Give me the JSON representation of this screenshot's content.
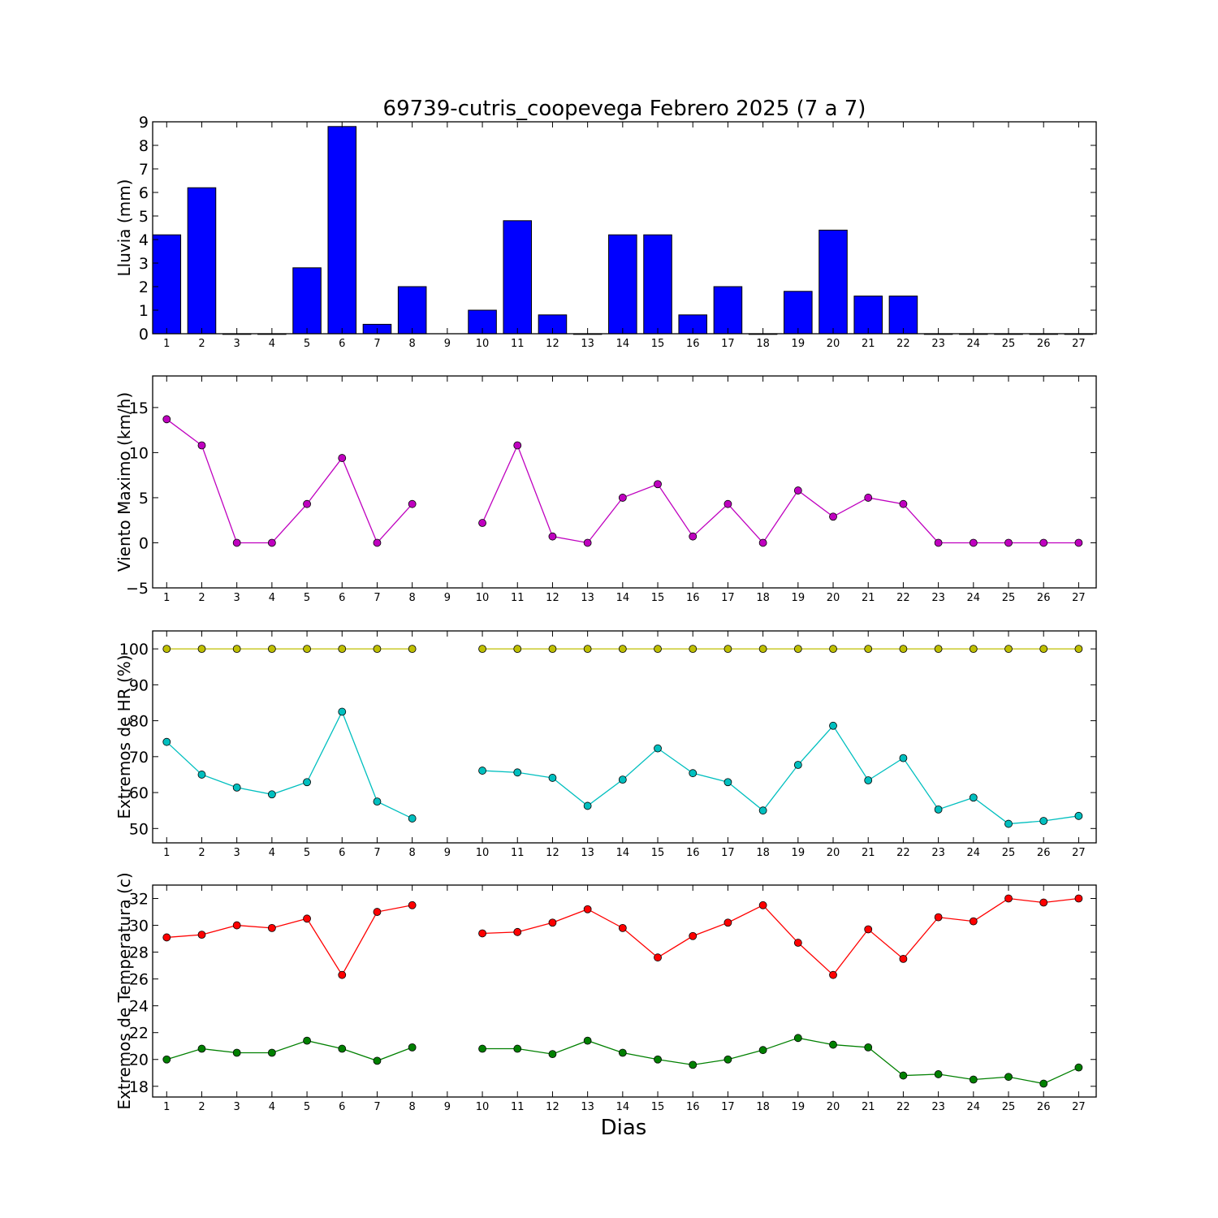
{
  "chart_data": [
    {
      "id": "lluvia",
      "type": "bar",
      "title": "69739-cutris_coopevega Febrero 2025  (7 a 7)",
      "ylabel": "Lluvia (mm)",
      "xlabel": "",
      "ylim": [
        0,
        9
      ],
      "yticks": [
        0,
        1,
        2,
        3,
        4,
        5,
        6,
        7,
        8,
        9
      ],
      "yticklabels": [
        "0",
        "1",
        "2",
        "3",
        "4",
        "5",
        "6",
        "7",
        "8",
        "9"
      ],
      "xlim": [
        0.6,
        27.5
      ],
      "categories": [
        1,
        2,
        3,
        4,
        5,
        6,
        7,
        8,
        9,
        10,
        11,
        12,
        13,
        14,
        15,
        16,
        17,
        18,
        19,
        20,
        21,
        22,
        23,
        24,
        25,
        26,
        27
      ],
      "series": [
        {
          "color": "#0000ff",
          "values": [
            4.2,
            6.2,
            0,
            0,
            2.8,
            8.8,
            0.4,
            2.0,
            null,
            1.0,
            4.8,
            0.8,
            0,
            4.2,
            4.2,
            0.8,
            2.0,
            0,
            1.8,
            4.4,
            1.6,
            1.6,
            0,
            0,
            0,
            0,
            0
          ]
        }
      ],
      "grid": false
    },
    {
      "id": "viento",
      "type": "line",
      "title": "",
      "ylabel": "Viento Maximo (km/h)",
      "xlabel": "",
      "ylim": [
        -5,
        18.5
      ],
      "yticks": [
        -5,
        0,
        5,
        10,
        15
      ],
      "yticklabels": [
        "−5",
        "0",
        "5",
        "10",
        "15"
      ],
      "xlim": [
        0.6,
        27.5
      ],
      "x": [
        1,
        2,
        3,
        4,
        5,
        6,
        7,
        8,
        9,
        10,
        11,
        12,
        13,
        14,
        15,
        16,
        17,
        18,
        19,
        20,
        21,
        22,
        23,
        24,
        25,
        26,
        27
      ],
      "series": [
        {
          "color": "#bf00bf",
          "values": [
            13.7,
            10.8,
            0,
            0,
            4.3,
            9.4,
            0,
            4.3,
            null,
            2.2,
            10.8,
            0.7,
            0,
            5.0,
            6.5,
            0.7,
            4.3,
            0,
            5.8,
            2.9,
            5.0,
            4.3,
            0,
            0,
            0,
            0,
            0
          ]
        }
      ],
      "grid": false
    },
    {
      "id": "hr",
      "type": "line",
      "title": "",
      "ylabel": "Extremos de HR (%)",
      "xlabel": "",
      "ylim": [
        46,
        105
      ],
      "yticks": [
        50,
        60,
        70,
        80,
        90,
        100
      ],
      "yticklabels": [
        "50",
        "60",
        "70",
        "80",
        "90",
        "100"
      ],
      "xlim": [
        0.6,
        27.5
      ],
      "x": [
        1,
        2,
        3,
        4,
        5,
        6,
        7,
        8,
        9,
        10,
        11,
        12,
        13,
        14,
        15,
        16,
        17,
        18,
        19,
        20,
        21,
        22,
        23,
        24,
        25,
        26,
        27
      ],
      "series": [
        {
          "color": "#bfbf00",
          "values": [
            100,
            100,
            100,
            100,
            100,
            100,
            100,
            100,
            null,
            100,
            100,
            100,
            100,
            100,
            100,
            100,
            100,
            100,
            100,
            100,
            100,
            100,
            100,
            100,
            100,
            100,
            100
          ]
        },
        {
          "color": "#00bfbf",
          "values": [
            74.1,
            65.0,
            61.4,
            59.5,
            62.9,
            82.5,
            57.5,
            52.8,
            null,
            66.1,
            65.6,
            64.1,
            56.3,
            63.6,
            72.3,
            65.4,
            62.9,
            55.0,
            67.7,
            78.6,
            63.4,
            69.6,
            55.3,
            58.6,
            51.3,
            52.1,
            53.5
          ]
        }
      ],
      "grid": false
    },
    {
      "id": "temperatura",
      "type": "line",
      "title": "",
      "ylabel": "Extremos de Temperatura (c)",
      "xlabel": "Dias",
      "ylim": [
        17.2,
        33.0
      ],
      "yticks": [
        18,
        20,
        22,
        24,
        26,
        28,
        30,
        32
      ],
      "yticklabels": [
        "18",
        "20",
        "22",
        "24",
        "26",
        "28",
        "30",
        "32"
      ],
      "xlim": [
        0.6,
        27.5
      ],
      "x": [
        1,
        2,
        3,
        4,
        5,
        6,
        7,
        8,
        9,
        10,
        11,
        12,
        13,
        14,
        15,
        16,
        17,
        18,
        19,
        20,
        21,
        22,
        23,
        24,
        25,
        26,
        27
      ],
      "series": [
        {
          "color": "#ff0000",
          "values": [
            29.1,
            29.3,
            30.0,
            29.8,
            30.5,
            26.3,
            31.0,
            31.5,
            null,
            29.4,
            29.5,
            30.2,
            31.2,
            29.8,
            27.6,
            29.2,
            30.2,
            31.5,
            28.7,
            26.3,
            29.7,
            27.5,
            30.6,
            30.3,
            32.0,
            31.7,
            32.0
          ]
        },
        {
          "color": "#008000",
          "values": [
            20.0,
            20.8,
            20.5,
            20.5,
            21.4,
            20.8,
            19.9,
            20.9,
            null,
            20.8,
            20.8,
            20.4,
            21.4,
            20.5,
            20.0,
            19.6,
            20.0,
            20.7,
            21.6,
            21.1,
            20.9,
            18.8,
            18.9,
            18.5,
            18.7,
            18.2,
            19.4
          ]
        }
      ],
      "grid": false
    }
  ]
}
